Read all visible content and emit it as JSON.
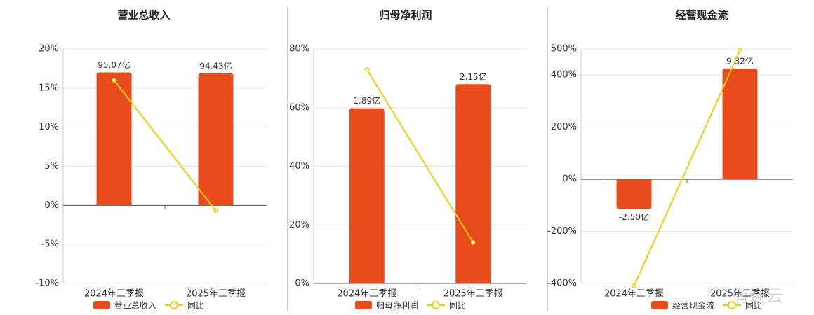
{
  "chart_data": [
    {
      "type": "bar",
      "title": "营业总收入",
      "categories": [
        "2024年三季报",
        "2025年三季报"
      ],
      "series": [
        {
          "name": "营业总收入",
          "color": "#e84c1c",
          "values": [
            95.07,
            94.43
          ],
          "value_labels": [
            "95.07亿",
            "94.43亿"
          ]
        },
        {
          "name": "同比",
          "color": "#f2cc0c",
          "values": [
            16,
            -0.67
          ]
        }
      ],
      "ylim": [
        -10,
        20
      ],
      "yticks": [
        {
          "value": -10,
          "label": "-10%"
        },
        {
          "value": -5,
          "label": "-5%"
        },
        {
          "value": 0,
          "label": "0%"
        },
        {
          "value": 5,
          "label": "5%"
        },
        {
          "value": 10,
          "label": "10%"
        },
        {
          "value": 15,
          "label": "15%"
        },
        {
          "value": 20,
          "label": "20%"
        }
      ],
      "grid": true
    },
    {
      "type": "bar",
      "title": "归母净利润",
      "categories": [
        "2024年三季报",
        "2025年三季报"
      ],
      "series": [
        {
          "name": "归母净利润",
          "color": "#e84c1c",
          "values": [
            1.89,
            2.15
          ],
          "value_labels": [
            "1.89亿",
            "2.15亿"
          ]
        },
        {
          "name": "同比",
          "color": "#f2cc0c",
          "values": [
            73,
            14
          ]
        }
      ],
      "ylim": [
        0,
        80
      ],
      "yticks": [
        {
          "value": 0,
          "label": "0%"
        },
        {
          "value": 20,
          "label": "20%"
        },
        {
          "value": 40,
          "label": "40%"
        },
        {
          "value": 60,
          "label": "60%"
        },
        {
          "value": 80,
          "label": "80%"
        }
      ],
      "grid": true
    },
    {
      "type": "bar",
      "title": "经营现金流",
      "categories": [
        "2024年三季报",
        "2025年三季报"
      ],
      "series": [
        {
          "name": "经营现金流",
          "color": "#e84c1c",
          "values": [
            -2.5,
            9.32
          ],
          "value_labels": [
            "-2.50亿",
            "9.32亿"
          ]
        },
        {
          "name": "同比",
          "color": "#f2cc0c",
          "values": [
            -410,
            495
          ]
        }
      ],
      "ylim": [
        -400,
        500
      ],
      "yticks": [
        {
          "value": -400,
          "label": "-400%"
        },
        {
          "value": -200,
          "label": "-200%"
        },
        {
          "value": 0,
          "label": "0%"
        },
        {
          "value": 200,
          "label": "200%"
        },
        {
          "value": 400,
          "label": "400%"
        },
        {
          "value": 500,
          "label": "500%"
        }
      ],
      "grid": true
    }
  ],
  "watermark": "有连云"
}
